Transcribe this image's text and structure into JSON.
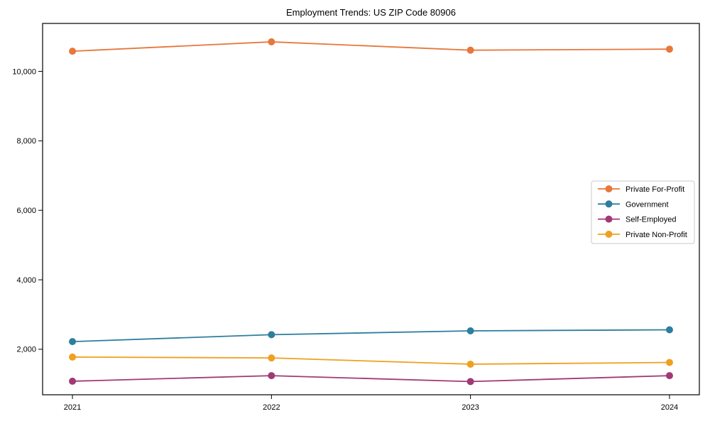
{
  "figure": {
    "title": "Employment Trends: US ZIP Code 80906"
  },
  "chart_data": {
    "type": "line",
    "title": "Employment Trends: US ZIP Code 80906",
    "xlabel": "",
    "ylabel": "",
    "x": [
      2021,
      2022,
      2023,
      2024
    ],
    "x_tick_labels": [
      "2021",
      "2022",
      "2023",
      "2024"
    ],
    "series": [
      {
        "name": "Private For-Profit",
        "color": "#e8773c",
        "values": [
          10580,
          10850,
          10610,
          10640
        ]
      },
      {
        "name": "Government",
        "color": "#2e7e9e",
        "values": [
          2220,
          2420,
          2530,
          2560
        ]
      },
      {
        "name": "Self-Employed",
        "color": "#a23977",
        "values": [
          1080,
          1240,
          1070,
          1240
        ]
      },
      {
        "name": "Private Non-Profit",
        "color": "#efa021",
        "values": [
          1775,
          1750,
          1570,
          1620
        ]
      }
    ],
    "xlim": [
      2020.85,
      2024.15
    ],
    "ylim": [
      690,
      11380
    ],
    "yticks": [
      2000,
      4000,
      6000,
      8000,
      10000
    ],
    "ytick_labels": [
      "2,000",
      "4,000",
      "6,000",
      "8,000",
      "10,000"
    ],
    "grid": false,
    "marker": "circle",
    "legend": {
      "position": "center-right",
      "entries": [
        "Private For-Profit",
        "Government",
        "Self-Employed",
        "Private Non-Profit"
      ],
      "border_color": "#c8c8c8",
      "background": "#ffffff"
    },
    "axis_color": "#000000",
    "text_color": "#000000"
  }
}
